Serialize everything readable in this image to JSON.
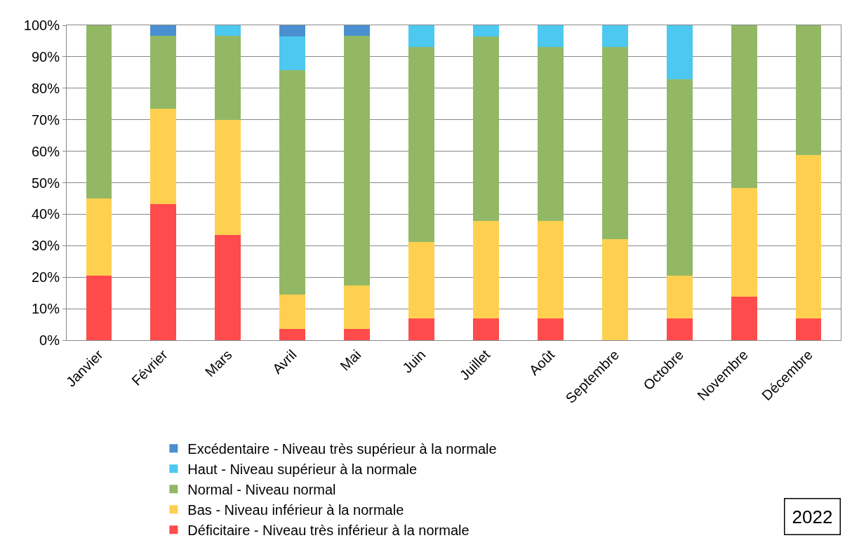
{
  "chart_data": {
    "type": "bar",
    "stacked": true,
    "categories": [
      "Janvier",
      "Février",
      "Mars",
      "Avril",
      "Mai",
      "Juin",
      "Juillet",
      "Août",
      "Septembre",
      "Octobre",
      "Novembre",
      "Décembre"
    ],
    "series": [
      {
        "name": "Déficitaire - Niveau très inférieur à la normale",
        "color": "#ff4b4b",
        "values": [
          20.6,
          43.3,
          33.3,
          3.5,
          3.5,
          6.8,
          6.9,
          6.9,
          0,
          6.9,
          13.8,
          6.9
        ]
      },
      {
        "name": "Bas - Niveau inférieur à la normale",
        "color": "#ffd050",
        "values": [
          24.3,
          30.2,
          36.7,
          10.9,
          13.8,
          24.3,
          31.0,
          31.0,
          32.1,
          13.7,
          34.6,
          51.9
        ]
      },
      {
        "name": "Normal - Niveau normal",
        "color": "#92b866",
        "values": [
          55.1,
          23.2,
          26.7,
          71.4,
          79.4,
          62.1,
          58.6,
          55.3,
          60.9,
          62.3,
          51.6,
          41.2
        ]
      },
      {
        "name": "Haut - Niveau supérieur à la normale",
        "color": "#4dc8f0",
        "values": [
          0,
          0,
          3.3,
          10.7,
          0,
          6.8,
          3.5,
          6.8,
          7.0,
          17.1,
          0,
          0
        ]
      },
      {
        "name": "Excédentaire - Niveau très supérieur à la normale",
        "color": "#4a90d0",
        "values": [
          0,
          3.3,
          0,
          3.5,
          3.3,
          0,
          0,
          0,
          0,
          0,
          0,
          0
        ]
      }
    ],
    "ylim": [
      0,
      100
    ],
    "yticks": [
      {
        "value": 0,
        "label": "0%"
      },
      {
        "value": 10,
        "label": "10%"
      },
      {
        "value": 20,
        "label": "20%"
      },
      {
        "value": 30,
        "label": "30%"
      },
      {
        "value": 40,
        "label": "40%"
      },
      {
        "value": 50,
        "label": "50%"
      },
      {
        "value": 60,
        "label": "60%"
      },
      {
        "value": 70,
        "label": "70%"
      },
      {
        "value": 80,
        "label": "80%"
      },
      {
        "value": 90,
        "label": "90%"
      },
      {
        "value": 100,
        "label": "100%"
      }
    ],
    "grid": "y",
    "legend": "bottom",
    "annotations": [
      "2022"
    ]
  }
}
